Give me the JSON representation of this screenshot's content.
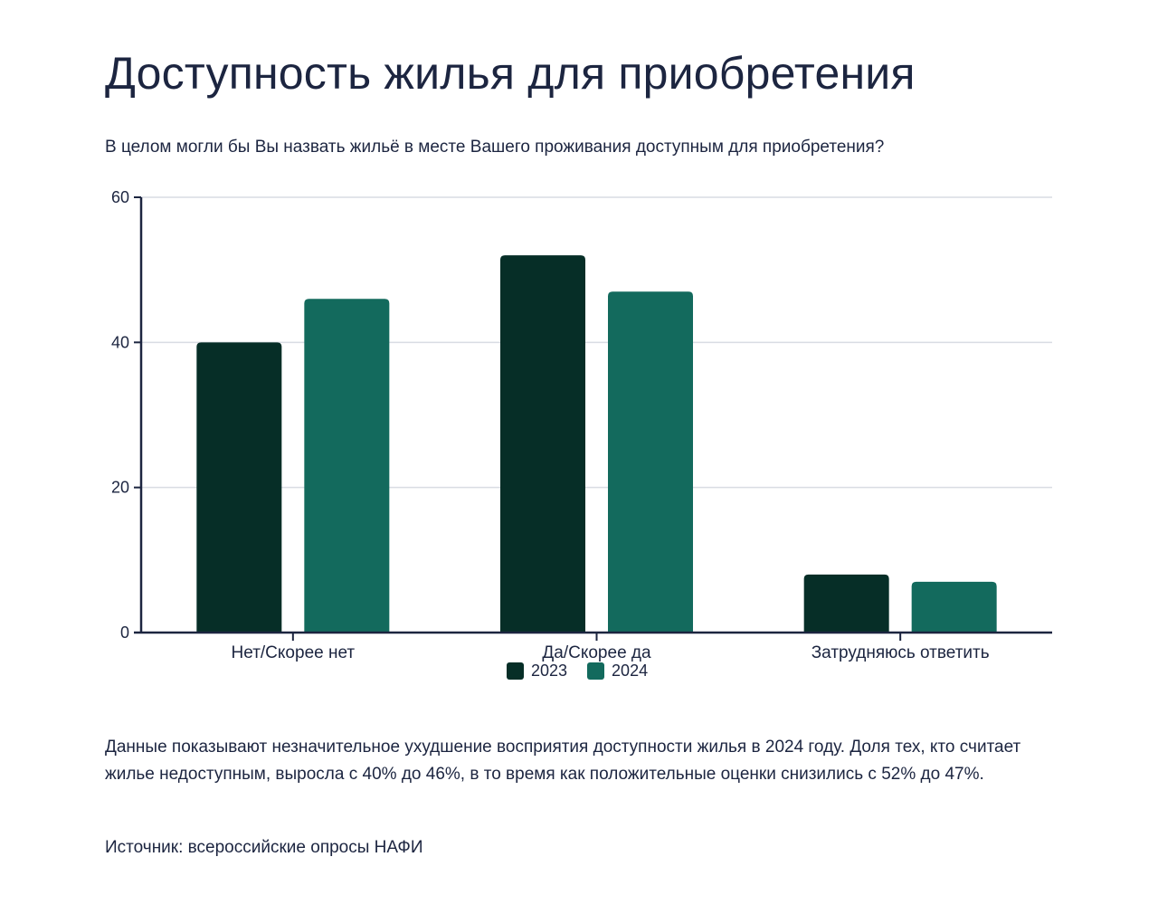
{
  "title": "Доступность жилья для приобретения",
  "subtitle": "В целом могли бы Вы назвать жильё в месте Вашего проживания доступным для приобретения?",
  "description": "Данные показывают незначительное ухудшение восприятия доступности жилья в 2024 году. Доля тех, кто считает жилье недоступным, выросла с 40% до 46%, в то время как положительные оценки снизились с 52% до 47%.",
  "source": "Источник: всероссийские опросы НАФИ",
  "colors": {
    "series_2023": "#062e27",
    "series_2024": "#136a5d",
    "axis": "#1c2540",
    "grid": "#d9dce3"
  },
  "chart_data": {
    "type": "bar",
    "title": "Доступность жилья для приобретения",
    "xlabel": "",
    "ylabel": "",
    "ylim": [
      0,
      60
    ],
    "yticks": [
      "0",
      "20",
      "40",
      "60"
    ],
    "grid": true,
    "legend_position": "bottom-center",
    "categories": [
      "Нет/Скорее нет",
      "Да/Скорее да",
      "Затрудняюсь ответить"
    ],
    "series": [
      {
        "name": "2023",
        "values": [
          40,
          52,
          8
        ]
      },
      {
        "name": "2024",
        "values": [
          46,
          47,
          7
        ]
      }
    ]
  }
}
